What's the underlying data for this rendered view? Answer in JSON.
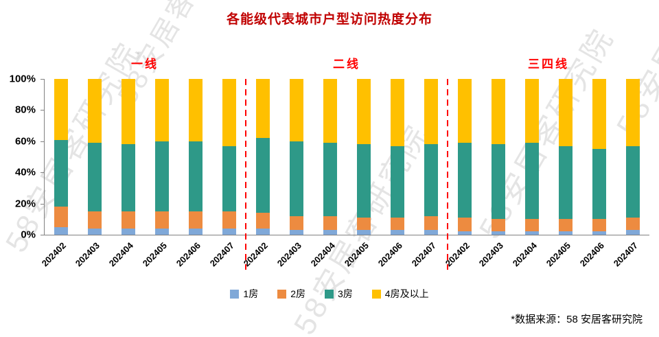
{
  "title": "各能级代表城市户型访问热度分布",
  "watermark_text": "58安居客研究院",
  "source_note": "*数据来源：58 安居客研究院",
  "y_ticks": [
    "100%",
    "80%",
    "60%",
    "40%",
    "20%",
    "0%"
  ],
  "legend": [
    {
      "label": "1房",
      "color": "#7fa8d8"
    },
    {
      "label": "2房",
      "color": "#ed8b40"
    },
    {
      "label": "3房",
      "color": "#2e9988"
    },
    {
      "label": "4房及以上",
      "color": "#ffc000"
    }
  ],
  "chart_data": {
    "type": "bar",
    "stacked": true,
    "percent": true,
    "title": "各能级代表城市户型访问热度分布",
    "ylim": [
      0,
      100
    ],
    "grid": false,
    "legend_position": "bottom",
    "series_names": [
      "1房",
      "2房",
      "3房",
      "4房及以上"
    ],
    "series_colors": [
      "#7fa8d8",
      "#ed8b40",
      "#2e9988",
      "#ffc000"
    ],
    "groups": [
      {
        "label": "一线",
        "categories": [
          "202402",
          "202403",
          "202404",
          "202405",
          "202406",
          "202407"
        ],
        "series": [
          {
            "name": "1房",
            "values": [
              5,
              4,
              4,
              4,
              4,
              4
            ]
          },
          {
            "name": "2房",
            "values": [
              13,
              11,
              11,
              11,
              11,
              11
            ]
          },
          {
            "name": "3房",
            "values": [
              43,
              44,
              43,
              45,
              45,
              42
            ]
          },
          {
            "name": "4房及以上",
            "values": [
              39,
              41,
              42,
              40,
              40,
              43
            ]
          }
        ]
      },
      {
        "label": "二线",
        "categories": [
          "202402",
          "202403",
          "202404",
          "202405",
          "202406",
          "202407"
        ],
        "series": [
          {
            "name": "1房",
            "values": [
              4,
              3,
              3,
              3,
              3,
              3
            ]
          },
          {
            "name": "2房",
            "values": [
              10,
              9,
              9,
              8,
              8,
              9
            ]
          },
          {
            "name": "3房",
            "values": [
              48,
              48,
              47,
              47,
              46,
              46
            ]
          },
          {
            "name": "4房及以上",
            "values": [
              38,
              40,
              41,
              42,
              43,
              42
            ]
          }
        ]
      },
      {
        "label": "三四线",
        "categories": [
          "202402",
          "202403",
          "202404",
          "202405",
          "202406",
          "202407"
        ],
        "series": [
          {
            "name": "1房",
            "values": [
              2,
              2,
              2,
              2,
              2,
              3
            ]
          },
          {
            "name": "2房",
            "values": [
              9,
              8,
              8,
              8,
              8,
              8
            ]
          },
          {
            "name": "3房",
            "values": [
              48,
              48,
              49,
              47,
              45,
              46
            ]
          },
          {
            "name": "4房及以上",
            "values": [
              41,
              42,
              41,
              43,
              45,
              43
            ]
          }
        ]
      }
    ]
  }
}
